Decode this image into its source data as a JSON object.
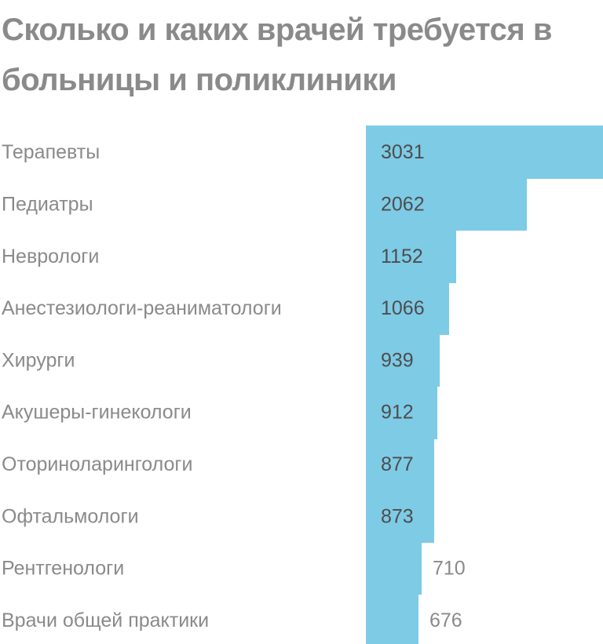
{
  "chart_data": {
    "type": "bar",
    "orientation": "horizontal",
    "title": "Сколько и каких врачей требуется в больницы и поликлиники",
    "categories": [
      "Терапевты",
      "Педиатры",
      "Неврологи",
      "Анестезиологи-реаниматологи",
      "Хирурги",
      "Акушеры-гинекологи",
      "Оториноларингологи",
      "Офтальмологи",
      "Рентгенологи",
      "Врачи общей практики"
    ],
    "values": [
      3031,
      2062,
      1152,
      1066,
      939,
      912,
      877,
      873,
      710,
      676
    ],
    "xlim": [
      0,
      3031
    ],
    "grid": false,
    "legend": "none",
    "colors": {
      "bar": "#7ecbe6",
      "label": "#8a8a8a",
      "value": "#4d4d4d"
    }
  }
}
